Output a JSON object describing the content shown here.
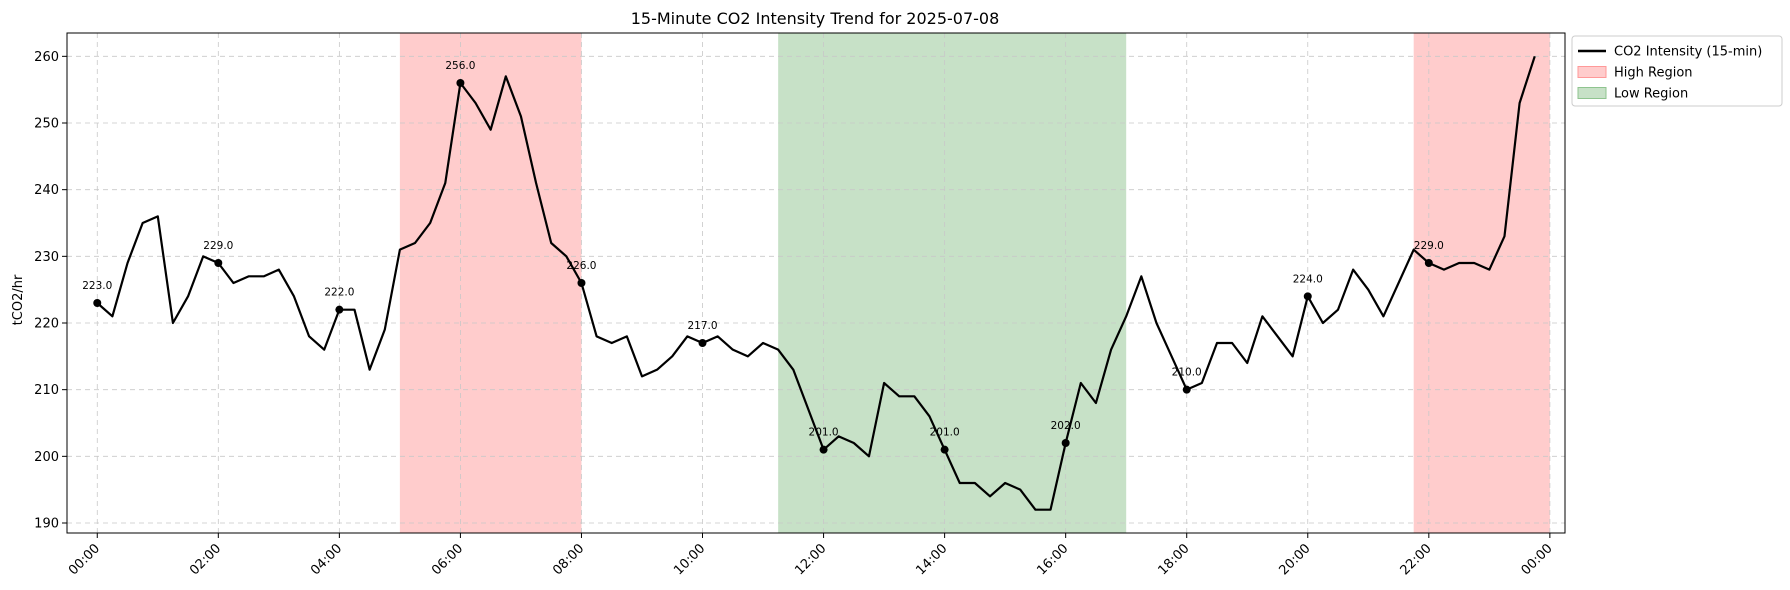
{
  "chart_data": {
    "type": "line",
    "title": "15-Minute CO2 Intensity Trend for 2025-07-08",
    "xlabel": "",
    "ylabel": "tCO2/hr",
    "ylim": [
      188.5,
      263.5
    ],
    "xlim_hours": [
      -0.5,
      24.25
    ],
    "y_ticks": [
      190,
      200,
      210,
      220,
      230,
      240,
      250,
      260
    ],
    "x_ticks": [
      {
        "h": 0,
        "label": "00:00"
      },
      {
        "h": 2,
        "label": "02:00"
      },
      {
        "h": 4,
        "label": "04:00"
      },
      {
        "h": 6,
        "label": "06:00"
      },
      {
        "h": 8,
        "label": "08:00"
      },
      {
        "h": 10,
        "label": "10:00"
      },
      {
        "h": 12,
        "label": "12:00"
      },
      {
        "h": 14,
        "label": "14:00"
      },
      {
        "h": 16,
        "label": "16:00"
      },
      {
        "h": 18,
        "label": "18:00"
      },
      {
        "h": 20,
        "label": "20:00"
      },
      {
        "h": 22,
        "label": "22:00"
      },
      {
        "h": 24,
        "label": "00:00"
      }
    ],
    "grid": true,
    "legend_position": "outside-top-right",
    "series": [
      {
        "name": "CO2 Intensity (15-min)",
        "color": "#000000",
        "interval_minutes": 15,
        "values": [
          223,
          221,
          229,
          235,
          236,
          220,
          224,
          230,
          229,
          226,
          227,
          227,
          228,
          224,
          218,
          216,
          222,
          222,
          213,
          219,
          231,
          232,
          235,
          241,
          256,
          253,
          249,
          257,
          251,
          241,
          232,
          230,
          226,
          218,
          217,
          218,
          212,
          213,
          215,
          218,
          217,
          218,
          216,
          215,
          217,
          216,
          213,
          207,
          201,
          203,
          202,
          200,
          211,
          209,
          209,
          206,
          201,
          196,
          196,
          194,
          196,
          195,
          192,
          192,
          202,
          211,
          208,
          216,
          221,
          227,
          220,
          215,
          210,
          211,
          217,
          217,
          214,
          221,
          218,
          215,
          224,
          220,
          222,
          228,
          225,
          221,
          226,
          231,
          229,
          228,
          229,
          229,
          228,
          233,
          253,
          260
        ]
      }
    ],
    "markers": [
      {
        "h": 0,
        "value": 223.0,
        "label": "223.0"
      },
      {
        "h": 2,
        "value": 229.0,
        "label": "229.0"
      },
      {
        "h": 4,
        "value": 222.0,
        "label": "222.0"
      },
      {
        "h": 6,
        "value": 256.0,
        "label": "256.0"
      },
      {
        "h": 8,
        "value": 226.0,
        "label": "226.0"
      },
      {
        "h": 10,
        "value": 217.0,
        "label": "217.0"
      },
      {
        "h": 12,
        "value": 201.0,
        "label": "201.0"
      },
      {
        "h": 14,
        "value": 201.0,
        "label": "201.0"
      },
      {
        "h": 16,
        "value": 202.0,
        "label": "202.0"
      },
      {
        "h": 18,
        "value": 210.0,
        "label": "210.0"
      },
      {
        "h": 20,
        "value": 224.0,
        "label": "224.0"
      },
      {
        "h": 22,
        "value": 229.0,
        "label": "229.0"
      }
    ],
    "regions": [
      {
        "name": "High Region",
        "from_h": 5.0,
        "to_h": 8.0,
        "color": "#ff9999"
      },
      {
        "name": "Low Region",
        "from_h": 11.25,
        "to_h": 17.0,
        "color": "#8fc48f"
      },
      {
        "name": "High Region",
        "from_h": 21.75,
        "to_h": 24.0,
        "color": "#ff9999"
      }
    ],
    "legend": [
      {
        "label": "CO2 Intensity (15-min)",
        "kind": "line",
        "color": "#000000"
      },
      {
        "label": "High Region",
        "kind": "patch",
        "color": "#ff9999"
      },
      {
        "label": "Low Region",
        "kind": "patch",
        "color": "#8fc48f"
      }
    ]
  }
}
